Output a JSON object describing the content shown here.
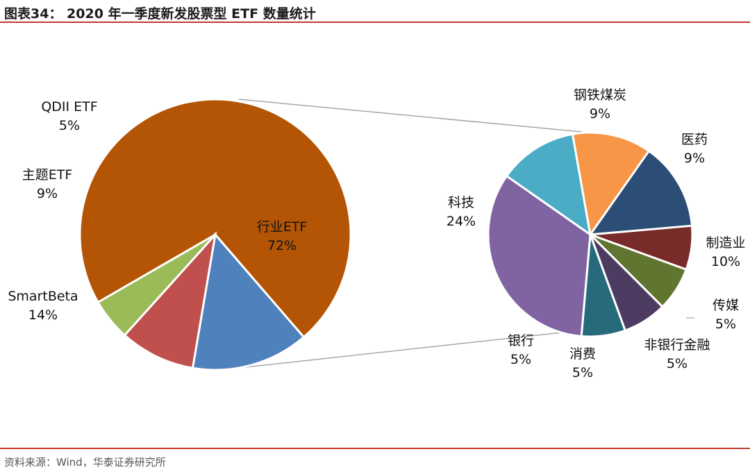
{
  "header": {
    "title": "图表34：  2020 年一季度新发股票型 ETF 数量统计"
  },
  "footer": {
    "source": "资料来源：Wind，华泰证券研究所"
  },
  "colors": {
    "accent_rule": "#c0392b",
    "connector": "#a6a6a6"
  },
  "chart_data": [
    {
      "type": "pie",
      "slices": [
        {
          "label": "行业ETF",
          "value": 72,
          "display": "72%",
          "color": "#b45506"
        },
        {
          "label": "SmartBeta",
          "value": 14,
          "display": "14%",
          "color": "#4f81bd"
        },
        {
          "label": "主题ETF",
          "value": 9,
          "display": "9%",
          "color": "#c0504d"
        },
        {
          "label": "QDII ETF",
          "value": 5,
          "display": "5%",
          "color": "#9bbb59"
        }
      ]
    },
    {
      "type": "pie",
      "slices": [
        {
          "label": "钢铁煤炭",
          "value": 9,
          "display": "9%",
          "color": "#4bacc6"
        },
        {
          "label": "医药",
          "value": 9,
          "display": "9%",
          "color": "#f79646"
        },
        {
          "label": "制造业",
          "value": 10,
          "display": "10%",
          "color": "#2c4d75"
        },
        {
          "label": "传媒",
          "value": 5,
          "display": "5%",
          "color": "#772c2a"
        },
        {
          "label": "非银行金融",
          "value": 5,
          "display": "5%",
          "color": "#5f7530"
        },
        {
          "label": "消费",
          "value": 5,
          "display": "5%",
          "color": "#4d3b62"
        },
        {
          "label": "银行",
          "value": 5,
          "display": "5%",
          "color": "#276a7c"
        },
        {
          "label": "科技",
          "value": 24,
          "display": "24%",
          "color": "#8064a2"
        }
      ]
    }
  ]
}
